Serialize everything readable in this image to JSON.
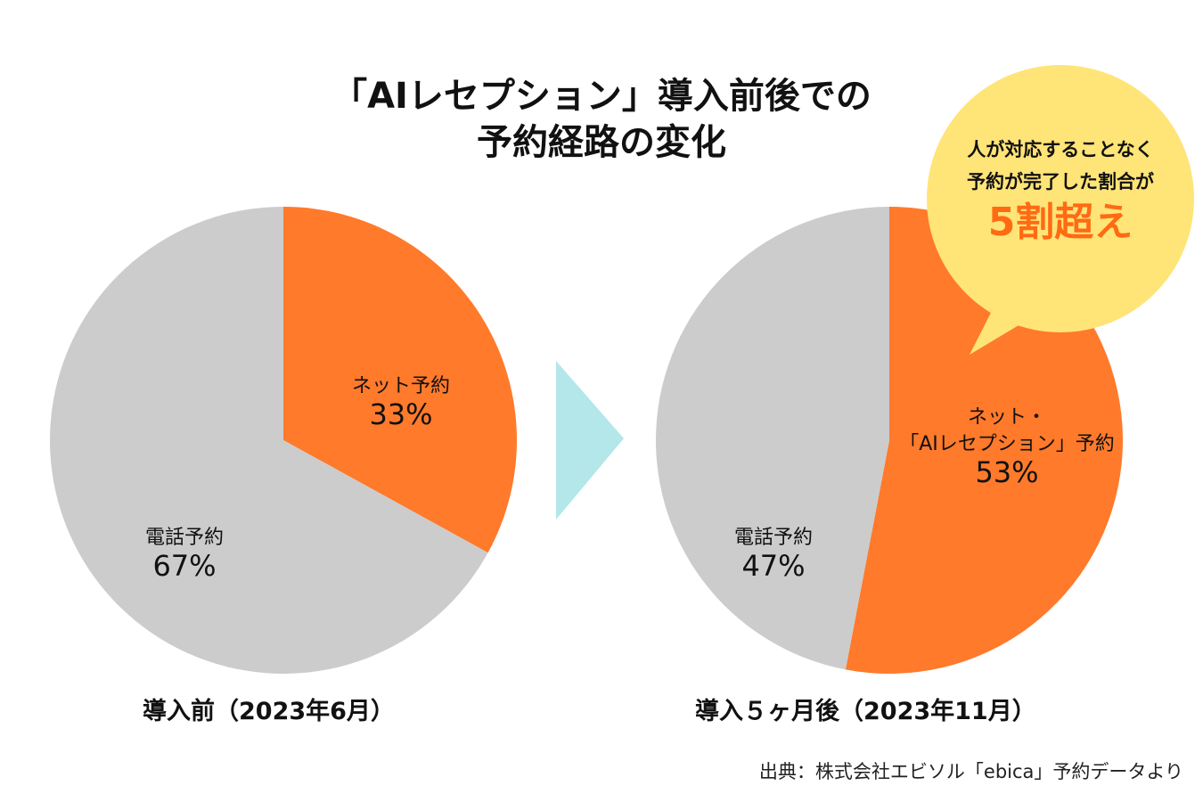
{
  "header": {
    "title_line1": "「AIレセプション」導入前後での",
    "title_line2": "予約経路の変化"
  },
  "chart_data": [
    {
      "type": "pie",
      "caption": "導入前（2023年6月）",
      "start_angle_deg": 0,
      "slices": [
        {
          "label": "ネット予約",
          "value": 33,
          "display": "33%",
          "color": "#ff7a2b"
        },
        {
          "label": "電話予約",
          "value": 67,
          "display": "67%",
          "color": "#cccccc"
        }
      ]
    },
    {
      "type": "pie",
      "caption": "導入５ヶ月後（2023年11月）",
      "start_angle_deg": 0,
      "slices": [
        {
          "label": "ネット・\n「AIレセプション」予約",
          "value": 53,
          "display": "53%",
          "color": "#ff7a2b"
        },
        {
          "label": "電話予約",
          "value": 47,
          "display": "47%",
          "color": "#cccccc"
        }
      ]
    }
  ],
  "callout": {
    "line1": "人が対応することなく",
    "line2": "予約が完了した割合が",
    "highlight": "5割超え",
    "bubble_color": "#ffe478",
    "highlight_color": "#ff6a13"
  },
  "arrow": {
    "color": "#b3e7ea"
  },
  "source": "出典：株式会社エビソル「ebica」予約データより"
}
